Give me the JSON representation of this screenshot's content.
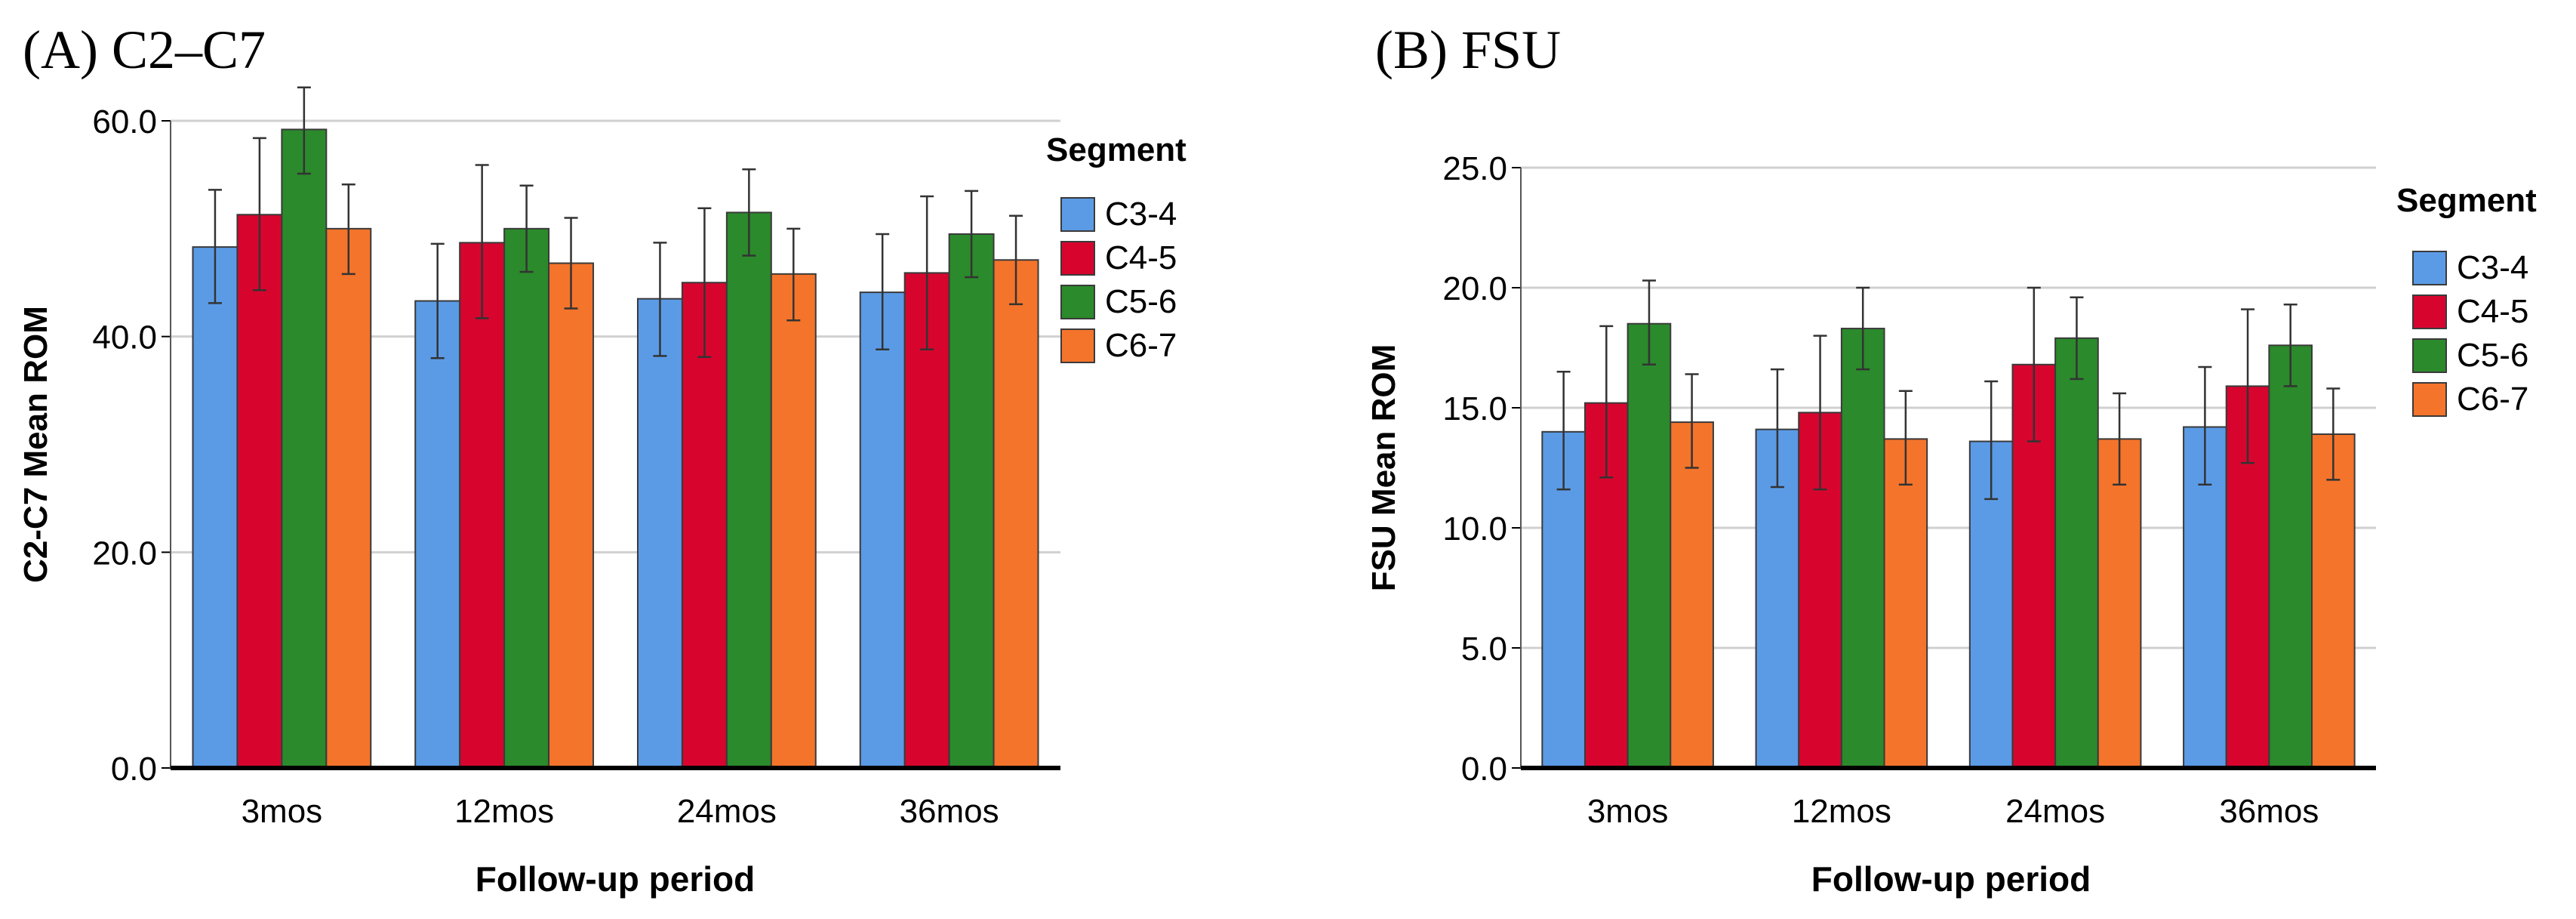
{
  "chart_data": [
    {
      "panel": "A",
      "type": "bar",
      "title": "(A) C2–C7",
      "xlabel": "Follow-up period",
      "ylabel": "C2-C7 Mean ROM",
      "ylim": [
        0,
        60
      ],
      "yticks": [
        0,
        20,
        40,
        60
      ],
      "ytick_labels": [
        "0.0",
        "20.0",
        "40.0",
        "60.0"
      ],
      "grid": true,
      "legend_title": "Segment",
      "legend_position": "right",
      "categories": [
        "3mos",
        "12mos",
        "24mos",
        "36mos"
      ],
      "series": [
        {
          "name": "C3-4",
          "color": "#5b9be6",
          "values": [
            48.3,
            43.3,
            43.5,
            44.1
          ],
          "error_low": [
            43.1,
            38.0,
            38.2,
            38.8
          ],
          "error_high": [
            53.6,
            48.6,
            48.7,
            49.5
          ]
        },
        {
          "name": "C4-5",
          "color": "#d7052e",
          "values": [
            51.3,
            48.7,
            45.0,
            45.9
          ],
          "error_low": [
            44.3,
            41.7,
            38.1,
            38.8
          ],
          "error_high": [
            58.4,
            55.9,
            51.9,
            53.0
          ]
        },
        {
          "name": "C5-6",
          "color": "#2b8a2b",
          "values": [
            59.2,
            50.0,
            51.5,
            49.5
          ],
          "error_low": [
            55.1,
            46.0,
            47.5,
            45.5
          ],
          "error_high": [
            63.1,
            54.0,
            55.5,
            53.5
          ]
        },
        {
          "name": "C6-7",
          "color": "#f4742b",
          "values": [
            50.0,
            46.8,
            45.8,
            47.1
          ],
          "error_low": [
            45.8,
            42.6,
            41.5,
            43.0
          ],
          "error_high": [
            54.1,
            51.0,
            50.0,
            51.2
          ]
        }
      ]
    },
    {
      "panel": "B",
      "type": "bar",
      "title": "(B) FSU",
      "xlabel": "Follow-up period",
      "ylabel": "FSU Mean ROM",
      "ylim": [
        0,
        25
      ],
      "yticks": [
        0,
        5,
        10,
        15,
        20,
        25
      ],
      "ytick_labels": [
        "0.0",
        "5.0",
        "10.0",
        "15.0",
        "20.0",
        "25.0"
      ],
      "grid": true,
      "legend_title": "Segment",
      "legend_position": "right",
      "categories": [
        "3mos",
        "12mos",
        "24mos",
        "36mos"
      ],
      "series": [
        {
          "name": "C3-4",
          "color": "#5b9be6",
          "values": [
            14.0,
            14.1,
            13.6,
            14.2
          ],
          "error_low": [
            11.6,
            11.7,
            11.2,
            11.8
          ],
          "error_high": [
            16.5,
            16.6,
            16.1,
            16.7
          ]
        },
        {
          "name": "C4-5",
          "color": "#d7052e",
          "values": [
            15.2,
            14.8,
            16.8,
            15.9
          ],
          "error_low": [
            12.1,
            11.6,
            13.6,
            12.7
          ],
          "error_high": [
            18.4,
            18.0,
            20.0,
            19.1
          ]
        },
        {
          "name": "C5-6",
          "color": "#2b8a2b",
          "values": [
            18.5,
            18.3,
            17.9,
            17.6
          ],
          "error_low": [
            16.8,
            16.6,
            16.2,
            15.9
          ],
          "error_high": [
            20.3,
            20.0,
            19.6,
            19.3
          ]
        },
        {
          "name": "C6-7",
          "color": "#f4742b",
          "values": [
            14.4,
            13.7,
            13.7,
            13.9
          ],
          "error_low": [
            12.5,
            11.8,
            11.8,
            12.0
          ],
          "error_high": [
            16.4,
            15.7,
            15.6,
            15.8
          ]
        }
      ]
    }
  ]
}
